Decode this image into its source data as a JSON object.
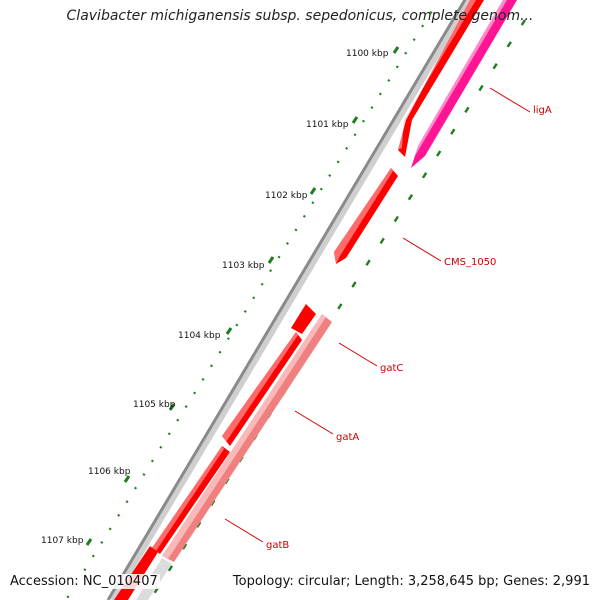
{
  "title": "Clavibacter michiganensis subsp. sepedonicus, complete genom...",
  "footer": {
    "accession": "Accession: NC_010407",
    "summary": "Topology: circular; Length: 3,258,645 bp; Genes: 2,991"
  },
  "colors": {
    "backbone": "#8a8a8a",
    "tick": "#1e7e1e",
    "gene_red": "#ff0000",
    "gene_pink": "#ff1493",
    "gene_salmon": "#f08080",
    "label": "#cc0000"
  },
  "ticks": [
    {
      "label": "1100 kbp"
    },
    {
      "label": "1101 kbp"
    },
    {
      "label": "1102 kbp"
    },
    {
      "label": "1103 kbp"
    },
    {
      "label": "1104 kbp"
    },
    {
      "label": "1105 kbp"
    },
    {
      "label": "1106 kbp"
    },
    {
      "label": "1107 kbp"
    }
  ],
  "genes": [
    {
      "name": "ligA",
      "color": "pink"
    },
    {
      "name": "CMS_1050",
      "color": "red"
    },
    {
      "name": "gatC",
      "color": "red"
    },
    {
      "name": "gatA",
      "color": "red"
    },
    {
      "name": "gatB",
      "color": "salmon"
    }
  ]
}
